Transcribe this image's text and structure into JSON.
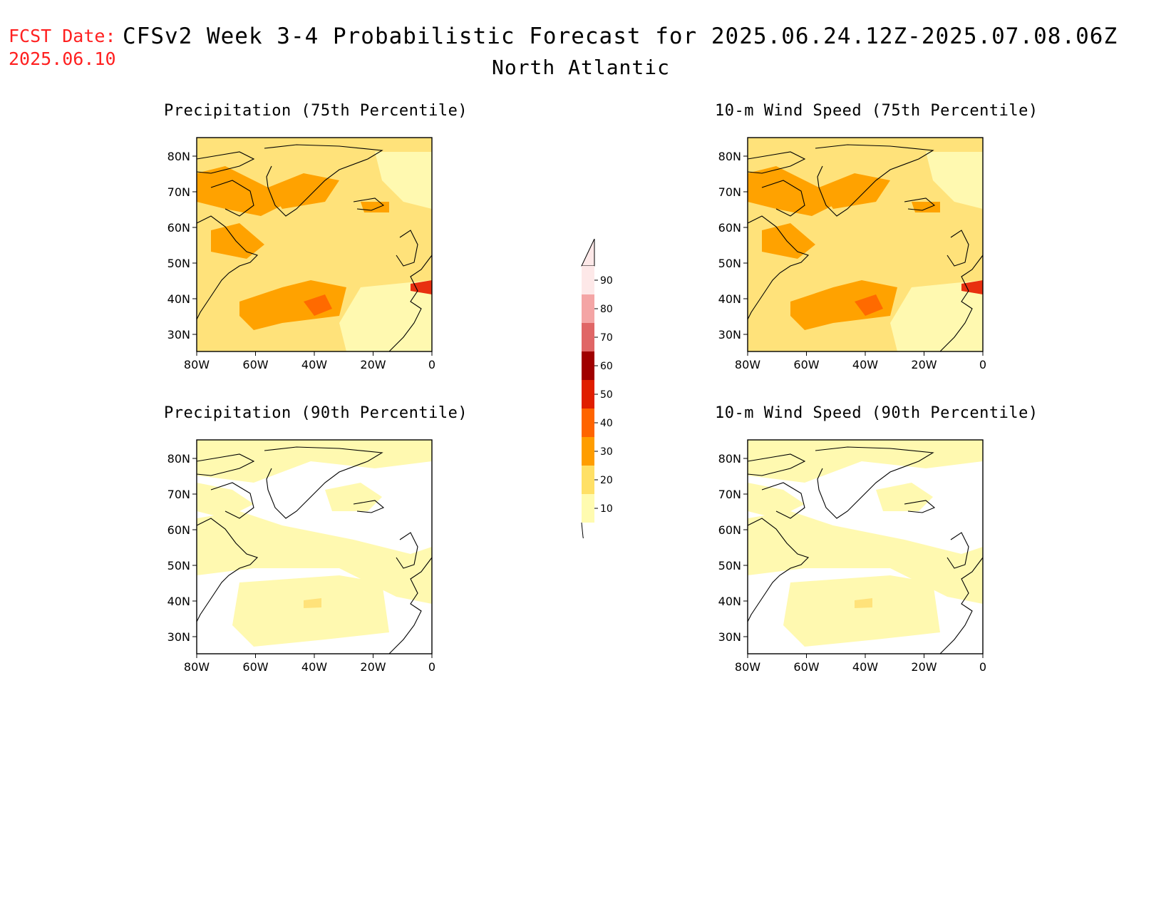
{
  "header": {
    "fcst_label": "FCST Date:",
    "fcst_date": "2025.06.10",
    "title": "CFSv2 Week 3-4 Probabilistic Forecast for 2025.06.24.12Z-2025.07.08.06Z",
    "subtitle": "North Atlantic"
  },
  "panels": [
    {
      "id": "precip75",
      "title": "Precipitation (75th Percentile)",
      "category": "mid"
    },
    {
      "id": "wind75",
      "title": "10-m Wind Speed (75th Percentile)",
      "category": "mid"
    },
    {
      "id": "precip90",
      "title": "Precipitation (90th Percentile)",
      "category": "low"
    },
    {
      "id": "wind90",
      "title": "10-m Wind Speed (90th Percentile)",
      "category": "low"
    }
  ],
  "axes": {
    "lat_ticks": [
      "80N",
      "70N",
      "60N",
      "50N",
      "40N",
      "30N"
    ],
    "lon_ticks": [
      "80W",
      "60W",
      "40W",
      "20W",
      "0"
    ]
  },
  "colorbar": {
    "labels": [
      "90",
      "80",
      "70",
      "60",
      "50",
      "40",
      "30",
      "20",
      "10"
    ],
    "colors": [
      "#fde8e8",
      "#f4a5a5",
      "#e06666",
      "#a00000",
      "#e01e00",
      "#ff6400",
      "#ff9d00",
      "#ffe066",
      "#fffbb0"
    ]
  },
  "colors": {
    "title_red": "#ff2020",
    "pale_yellow": "#fff9b0",
    "yellow": "#ffe27a",
    "orange": "#ffa200",
    "dark_orange": "#ff6a00",
    "red": "#e83010"
  }
}
